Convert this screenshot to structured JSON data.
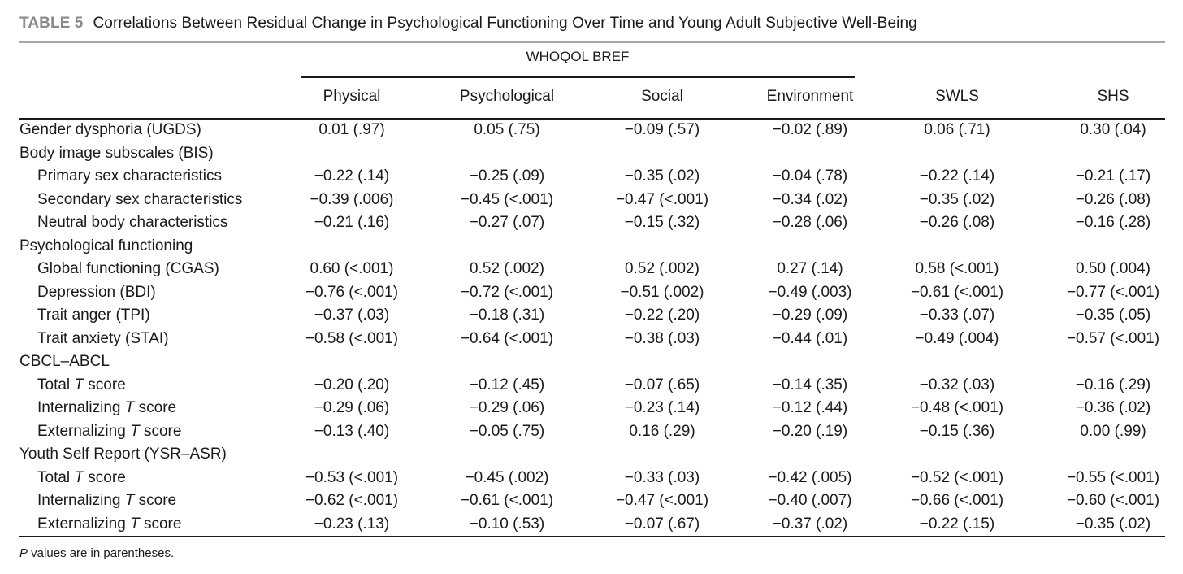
{
  "caption": {
    "label": "TABLE 5",
    "title": "Correlations Between Residual Change in Psychological Functioning Over Time and Young Adult Subjective Well-Being"
  },
  "group_header": "WHOQOL BREF",
  "columns": [
    "Physical",
    "Psychological",
    "Social",
    "Environment",
    "SWLS",
    "SHS"
  ],
  "rows": [
    {
      "label": "Gender dysphoria (UGDS)",
      "indent": 0,
      "values": [
        "0.01 (.97)",
        "0.05 (.75)",
        "−0.09 (.57)",
        "−0.02 (.89)",
        "0.06 (.71)",
        "0.30 (.04)"
      ]
    },
    {
      "label": "Body image subscales (BIS)",
      "indent": 0,
      "values": []
    },
    {
      "label": "Primary sex characteristics",
      "indent": 1,
      "values": [
        "−0.22 (.14)",
        "−0.25 (.09)",
        "−0.35 (.02)",
        "−0.04 (.78)",
        "−0.22 (.14)",
        "−0.21 (.17)"
      ]
    },
    {
      "label": "Secondary sex characteristics",
      "indent": 1,
      "values": [
        "−0.39 (.006)",
        "−0.45 (<.001)",
        "−0.47 (<.001)",
        "−0.34 (.02)",
        "−0.35 (.02)",
        "−0.26 (.08)"
      ]
    },
    {
      "label": "Neutral body characteristics",
      "indent": 1,
      "values": [
        "−0.21 (.16)",
        "−0.27 (.07)",
        "−0.15 (.32)",
        "−0.28 (.06)",
        "−0.26 (.08)",
        "−0.16 (.28)"
      ]
    },
    {
      "label": "Psychological functioning",
      "indent": 0,
      "values": []
    },
    {
      "label": "Global functioning (CGAS)",
      "indent": 1,
      "values": [
        "0.60 (<.001)",
        "0.52 (.002)",
        "0.52 (.002)",
        "0.27 (.14)",
        "0.58 (<.001)",
        "0.50 (.004)"
      ]
    },
    {
      "label": "Depression (BDI)",
      "indent": 1,
      "values": [
        "−0.76 (<.001)",
        "−0.72 (<.001)",
        "−0.51 (.002)",
        "−0.49 (.003)",
        "−0.61 (<.001)",
        "−0.77 (<.001)"
      ]
    },
    {
      "label": "Trait anger (TPI)",
      "indent": 1,
      "values": [
        "−0.37 (.03)",
        "−0.18 (.31)",
        "−0.22 (.20)",
        "−0.29 (.09)",
        "−0.33 (.07)",
        "−0.35 (.05)"
      ]
    },
    {
      "label": "Trait anxiety (STAI)",
      "indent": 1,
      "values": [
        "−0.58 (<.001)",
        "−0.64 (<.001)",
        "−0.38 (.03)",
        "−0.44 (.01)",
        "−0.49 (.004)",
        "−0.57 (<.001)"
      ]
    },
    {
      "label": "CBCL–ABCL",
      "indent": 0,
      "values": []
    },
    {
      "label": "Total T score",
      "indent": 1,
      "values": [
        "−0.20 (.20)",
        "−0.12 (.45)",
        "−0.07 (.65)",
        "−0.14 (.35)",
        "−0.32 (.03)",
        "−0.16 (.29)"
      ]
    },
    {
      "label": "Internalizing T score",
      "indent": 1,
      "values": [
        "−0.29 (.06)",
        "−0.29 (.06)",
        "−0.23 (.14)",
        "−0.12 (.44)",
        "−0.48 (<.001)",
        "−0.36 (.02)"
      ]
    },
    {
      "label": "Externalizing T score",
      "indent": 1,
      "values": [
        "−0.13 (.40)",
        "−0.05 (.75)",
        "0.16 (.29)",
        "−0.20 (.19)",
        "−0.15 (.36)",
        "0.00 (.99)"
      ]
    },
    {
      "label": "Youth Self Report (YSR–ASR)",
      "indent": 0,
      "values": []
    },
    {
      "label": "Total T score",
      "indent": 1,
      "values": [
        "−0.53 (<.001)",
        "−0.45 (.002)",
        "−0.33 (.03)",
        "−0.42 (.005)",
        "−0.52 (<.001)",
        "−0.55 (<.001)"
      ]
    },
    {
      "label": "Internalizing T score",
      "indent": 1,
      "values": [
        "−0.62 (<.001)",
        "−0.61 (<.001)",
        "−0.47 (<.001)",
        "−0.40 (.007)",
        "−0.66 (<.001)",
        "−0.60 (<.001)"
      ]
    },
    {
      "label": "Externalizing T score",
      "indent": 1,
      "values": [
        "−0.23 (.13)",
        "−0.10 (.53)",
        "−0.07 (.67)",
        "−0.37 (.02)",
        "−0.22 (.15)",
        "−0.35 (.02)"
      ]
    }
  ],
  "footnote": {
    "italic": "P",
    "text": " values are in parentheses."
  }
}
